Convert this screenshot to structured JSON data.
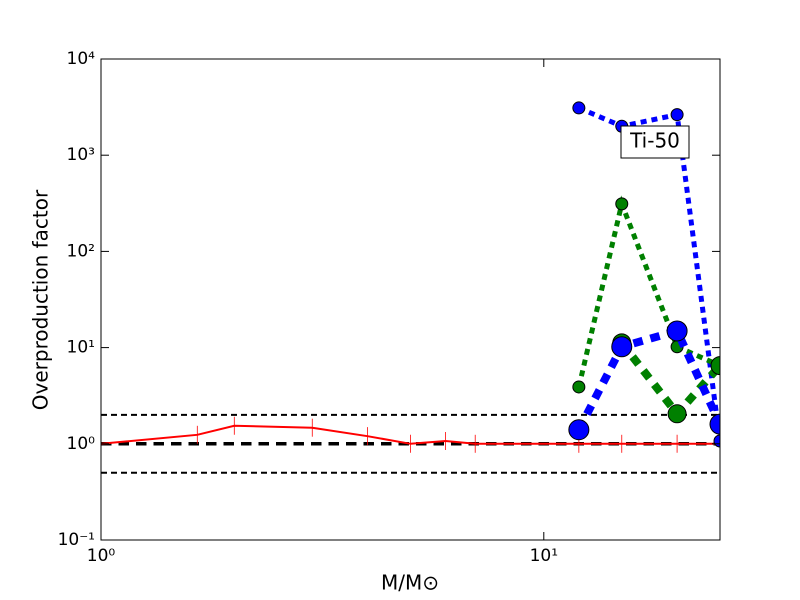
{
  "chart_data": {
    "type": "line",
    "xlabel": "M/M⊙",
    "ylabel": "Overproduction factor",
    "xscale": "log",
    "yscale": "log",
    "xlim": [
      1,
      25
    ],
    "ylim": [
      0.1,
      10000
    ],
    "xticks": [
      {
        "value": 1,
        "label": "10⁰"
      },
      {
        "value": 10,
        "label": "10¹"
      }
    ],
    "yticks": [
      {
        "value": 0.1,
        "label": "10⁻¹"
      },
      {
        "value": 1,
        "label": "10⁰"
      },
      {
        "value": 10,
        "label": "10¹"
      },
      {
        "value": 100,
        "label": "10²"
      },
      {
        "value": 1000,
        "label": "10³"
      },
      {
        "value": 10000,
        "label": "10⁴"
      }
    ],
    "annotation": "Ti-50",
    "series": [
      {
        "color": "#000000",
        "linestyle": "dashed",
        "width": 2,
        "x": [
          1,
          25
        ],
        "values": [
          2,
          2
        ]
      },
      {
        "color": "#000000",
        "linestyle": "dashed",
        "width": 3.5,
        "x": [
          1,
          25
        ],
        "values": [
          1,
          1
        ]
      },
      {
        "color": "#000000",
        "linestyle": "dashed",
        "width": 2,
        "x": [
          1,
          25
        ],
        "values": [
          0.5,
          0.5
        ]
      },
      {
        "color": "#ff0000",
        "linestyle": "solid",
        "width": 2,
        "marker": "vline",
        "x": [
          1,
          1.65,
          2,
          3,
          4,
          5,
          6,
          7,
          12,
          15,
          20,
          25
        ],
        "values": [
          1.0,
          1.24,
          1.54,
          1.47,
          1.2,
          1.0,
          1.07,
          1.0,
          1.0,
          1.0,
          1.0,
          1.0
        ]
      },
      {
        "color": "#0000ff",
        "linestyle": "dotted",
        "width": 5,
        "marker": "circle",
        "size": 6,
        "x": [
          12,
          15,
          20,
          25
        ],
        "values": [
          3100,
          2000,
          2640,
          1.07
        ]
      },
      {
        "color": "#008000",
        "linestyle": "dotted",
        "width": 5,
        "marker": "circle",
        "size": 6,
        "x": [
          12,
          15,
          20,
          25
        ],
        "values": [
          3.9,
          312,
          10.2,
          6.5
        ]
      },
      {
        "color": "#008000",
        "linestyle": "dotted",
        "width": 8,
        "marker": "circle",
        "size": 9,
        "x": [
          15,
          20,
          25
        ],
        "values": [
          11.2,
          2.05,
          6.5
        ]
      },
      {
        "color": "#0000ff",
        "linestyle": "dotted",
        "width": 8,
        "marker": "circle",
        "size": 10,
        "x": [
          12,
          15,
          20,
          25
        ],
        "values": [
          1.4,
          10.2,
          14.9,
          1.6
        ]
      }
    ]
  }
}
